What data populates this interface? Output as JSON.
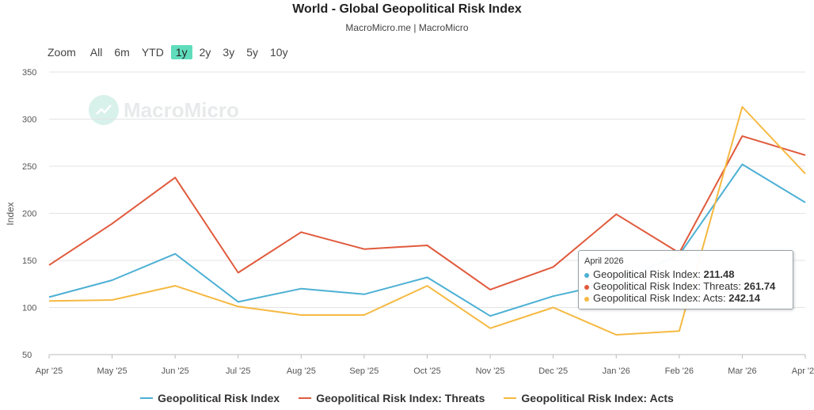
{
  "header": {
    "title": "World - Global Geopolitical Risk Index",
    "subtitle": "MacroMicro.me | MacroMicro"
  },
  "zoom": {
    "label": "Zoom",
    "options": [
      "All",
      "6m",
      "YTD",
      "1y",
      "2y",
      "3y",
      "5y",
      "10y"
    ],
    "selected": "1y"
  },
  "watermark": {
    "text": "MacroMicro",
    "color": "#2bb58f"
  },
  "tooltip": {
    "title": "April 2026",
    "rows": [
      {
        "label": "Geopolitical Risk Index: ",
        "value": "211.48",
        "color": "#4cb0d4"
      },
      {
        "label": "Geopolitical Risk Index: Threats: ",
        "value": "261.74",
        "color": "#e05a3c"
      },
      {
        "label": "Geopolitical Risk Index: Acts: ",
        "value": "242.14",
        "color": "#f5b942"
      }
    ]
  },
  "chart_data": {
    "type": "line",
    "ylabel": "Index",
    "ylim": [
      50,
      350
    ],
    "yticks": [
      50,
      100,
      150,
      200,
      250,
      300,
      350
    ],
    "grid": true,
    "legend_position": "bottom-center",
    "categories": [
      "Apr '25",
      "May '25",
      "Jun '25",
      "Jul '25",
      "Aug '25",
      "Sep '25",
      "Oct '25",
      "Nov '25",
      "Dec '25",
      "Jan '26",
      "Feb '26",
      "Mar '26",
      "Apr '26"
    ],
    "series": [
      {
        "name": "Geopolitical Risk Index",
        "color": "#4cb0d4",
        "values": [
          111,
          129,
          157,
          106,
          120,
          114,
          132,
          91,
          112,
          127,
          156,
          252,
          211.48
        ]
      },
      {
        "name": "Geopolitical Risk Index: Threats",
        "color": "#e05a3c",
        "values": [
          145,
          189,
          238,
          137,
          180,
          162,
          166,
          119,
          143,
          199,
          158,
          282,
          261.74
        ]
      },
      {
        "name": "Geopolitical Risk Index: Acts",
        "color": "#f5b942",
        "values": [
          107,
          108,
          123,
          101,
          92,
          92,
          123,
          78,
          100,
          71,
          75,
          313,
          242.14
        ]
      }
    ]
  }
}
